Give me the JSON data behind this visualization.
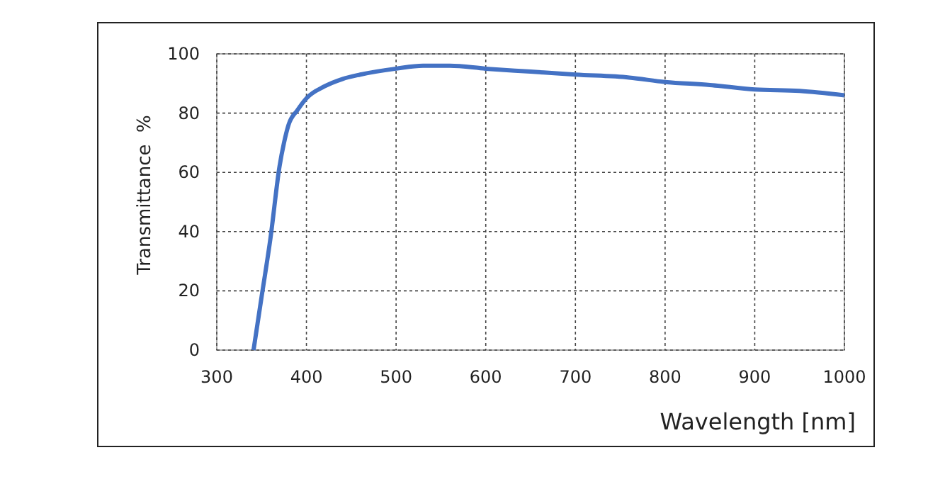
{
  "chart_data": {
    "type": "line",
    "xlabel": "Wavelength [nm]",
    "ylabel": "Transmittance  %",
    "x": [
      341,
      350,
      360,
      370,
      375,
      380,
      390,
      400,
      420,
      440,
      460,
      500,
      530,
      560,
      600,
      650,
      700,
      760,
      800,
      850,
      900,
      950,
      1000
    ],
    "series": [
      {
        "color": "#4472c4",
        "values": [
          0,
          18,
          38,
          62,
          70,
          76,
          81,
          85,
          89,
          91.5,
          93,
          95,
          96,
          96,
          95,
          94,
          93,
          92,
          90.5,
          89.5,
          88,
          87.5,
          86
        ]
      }
    ],
    "xlim": [
      300,
      1000
    ],
    "xticks": [
      300,
      400,
      500,
      600,
      700,
      800,
      900,
      1000
    ],
    "ylim": [
      0,
      100
    ],
    "yticks": [
      0,
      20,
      40,
      60,
      80,
      100
    ],
    "grid": true,
    "line_style": "solid",
    "marker": "none"
  }
}
